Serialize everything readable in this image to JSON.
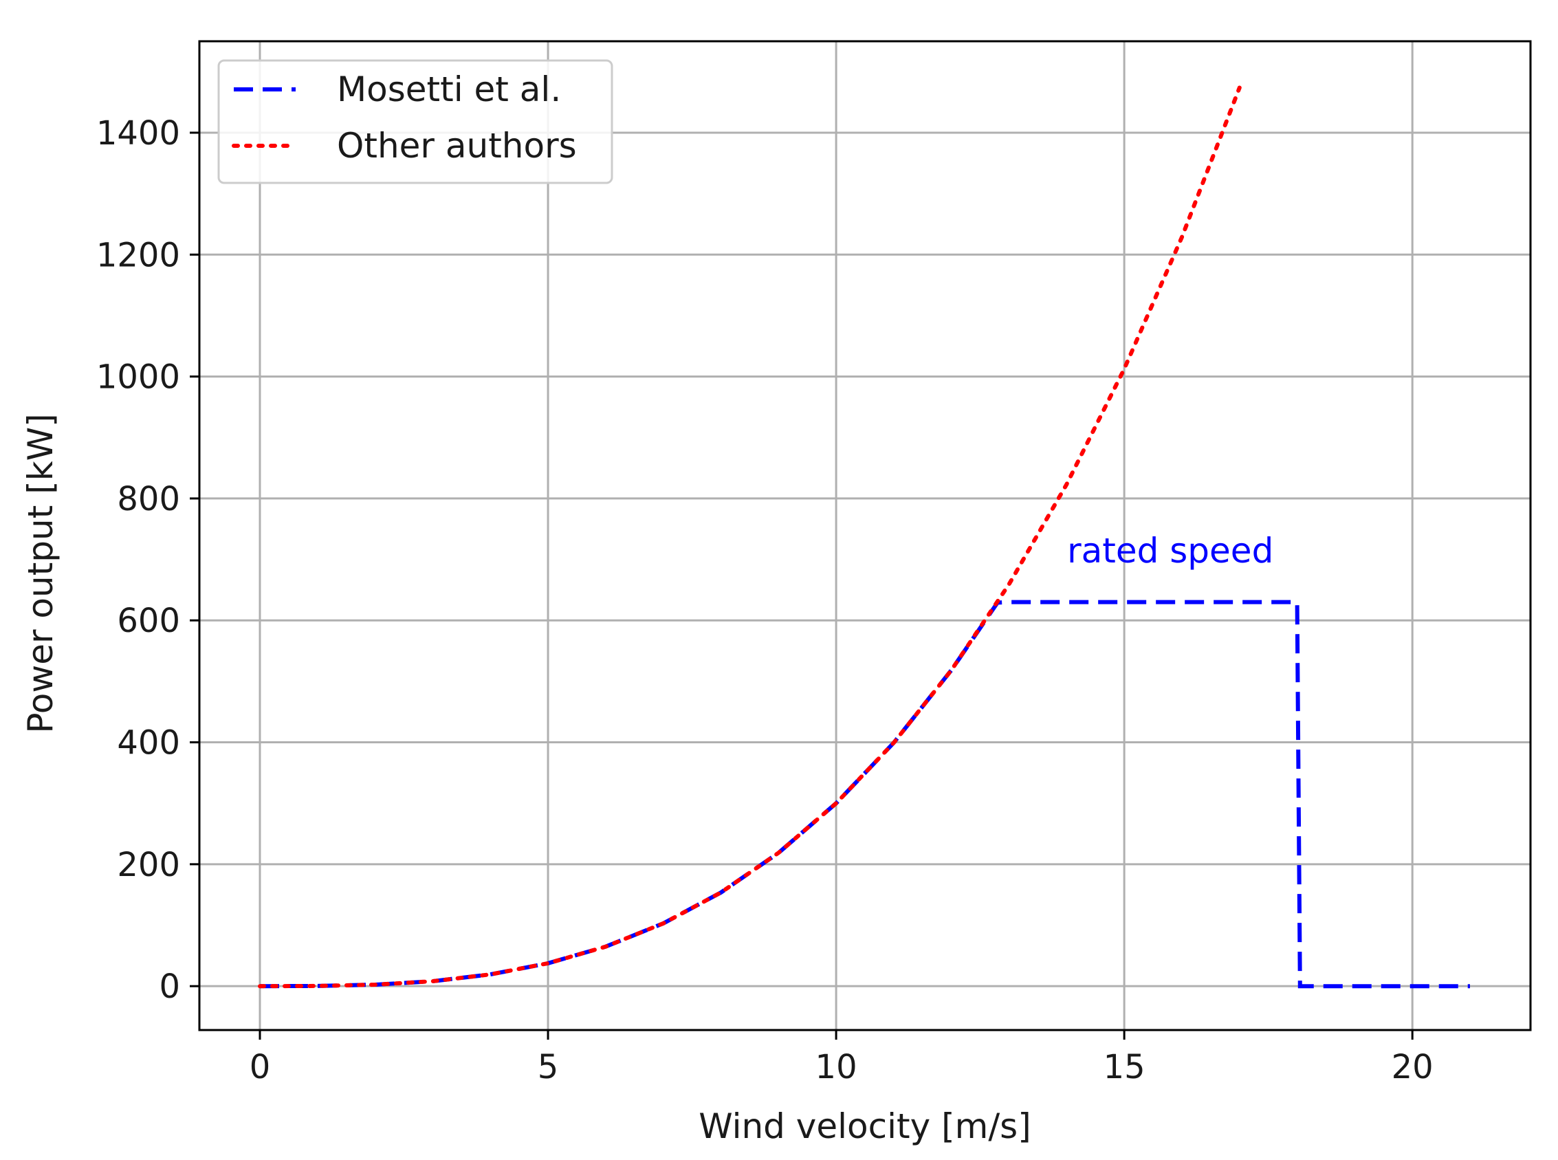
{
  "chart_data": {
    "type": "line",
    "xlabel": "Wind velocity [m/s]",
    "ylabel": "Power output [kW]",
    "xlim": [
      -1.05,
      22.05
    ],
    "ylim": [
      -72,
      1550
    ],
    "xticks": [
      0,
      5,
      10,
      15,
      20
    ],
    "yticks": [
      0,
      200,
      400,
      600,
      800,
      1000,
      1200,
      1400
    ],
    "grid": true,
    "legend_position": "upper-left",
    "series": [
      {
        "name": "Mosetti et al.",
        "color": "#0000ff",
        "style": "dashed",
        "x": [
          0,
          1,
          2,
          3,
          4,
          5,
          6,
          7,
          8,
          9,
          10,
          11,
          12,
          12.8,
          13,
          14,
          15,
          16,
          17,
          18,
          18.05,
          19,
          20,
          21
        ],
        "y": [
          0,
          0.3,
          2.4,
          8.1,
          19.2,
          37.5,
          64.8,
          102.9,
          153.6,
          218.7,
          300,
          399.3,
          518.4,
          629.1,
          630,
          630,
          630,
          630,
          630,
          630,
          0,
          0,
          0,
          0
        ]
      },
      {
        "name": "Other authors",
        "color": "#ff0000",
        "style": "dotted",
        "x": [
          0,
          1,
          2,
          3,
          4,
          5,
          6,
          7,
          8,
          9,
          10,
          11,
          12,
          13,
          14,
          15,
          16,
          17
        ],
        "y": [
          0,
          0.3,
          2.4,
          8.1,
          19.2,
          37.5,
          64.8,
          102.9,
          153.6,
          218.7,
          300,
          399.3,
          518.4,
          659.1,
          823.2,
          1012.5,
          1228.8,
          1473.9
        ]
      }
    ],
    "annotations": [
      {
        "text": "rated speed",
        "x": 15.8,
        "y": 695,
        "color": "#0000ff"
      }
    ]
  }
}
